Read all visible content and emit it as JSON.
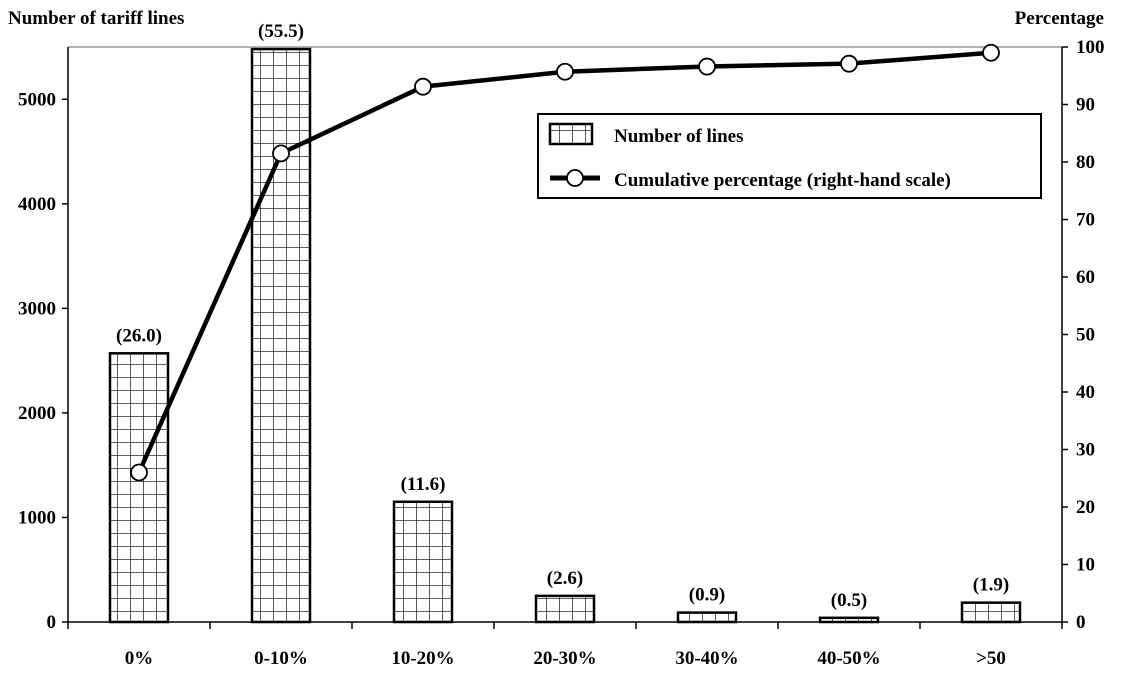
{
  "chart_data": {
    "type": "bar",
    "categories": [
      "0%",
      "0-10%",
      "10-20%",
      "20-30%",
      "30-40%",
      "40-50%",
      ">50"
    ],
    "series": [
      {
        "name": "Number of lines",
        "type": "bar",
        "axis": "left",
        "values": [
          2570,
          5480,
          1150,
          250,
          90,
          40,
          185
        ],
        "data_labels": [
          "(26.0)",
          "(55.5)",
          "(11.6)",
          "(2.6)",
          "(0.9)",
          "(0.5)",
          "(1.9)"
        ]
      },
      {
        "name": "Cumulative percentage (right-hand scale)",
        "type": "line",
        "axis": "right",
        "values": [
          26.0,
          81.5,
          93.1,
          95.7,
          96.6,
          97.1,
          99.0
        ]
      }
    ],
    "ylabel": "Number of tariff lines",
    "y2label": "Percentage",
    "ylim": [
      0,
      5500
    ],
    "yticks": [
      0,
      1000,
      2000,
      3000,
      4000,
      5000
    ],
    "y2lim": [
      0,
      100
    ],
    "y2ticks": [
      0,
      10,
      20,
      30,
      40,
      50,
      60,
      70,
      80,
      90,
      100
    ],
    "grid": false,
    "legend_position": "top-right",
    "bar_fill": "grid-hatch",
    "colors": {
      "bar_stroke": "#000000",
      "line": "#000000",
      "marker_fill": "#ffffff"
    }
  }
}
